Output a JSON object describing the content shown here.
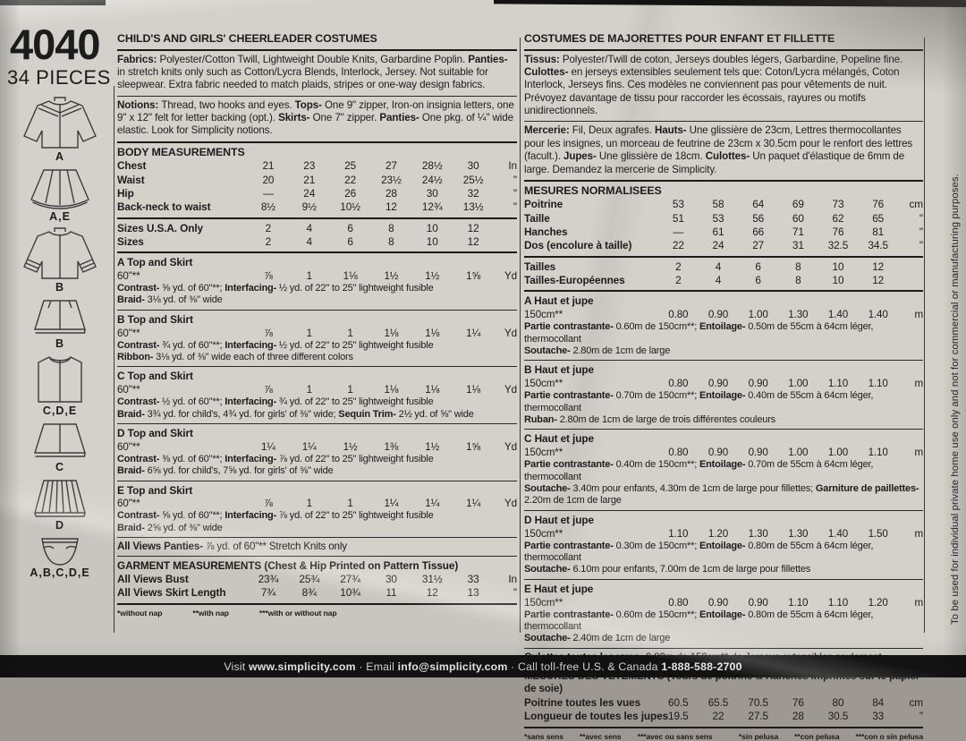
{
  "colors": {
    "paper": "#d4d1cb",
    "ink": "#1c1c1c",
    "footer_bg": "#141414",
    "footer_text": "#eceae7"
  },
  "sidebar": {
    "pattern_number": "4040",
    "pieces_count": "34 PIECES",
    "view_labels": [
      "A",
      "A,E",
      "B",
      "B",
      "C,D,E",
      "C",
      "D",
      "A,B,C,D,E"
    ]
  },
  "page": {
    "side_note": "To be used for individual private home use only and not for commercial or manufacturing purposes.",
    "footer": [
      "Visit ",
      "www.simplicity.com",
      " · Email ",
      "info@simplicity.com",
      " · Call toll-free U.S. & Canada ",
      "1-888-588-2700"
    ]
  },
  "english": {
    "title": "CHILD'S AND GIRLS' CHEERLEADER COSTUMES",
    "fabrics": [
      "Fabrics: ",
      "Polyester/Cotton Twill, Lightweight Double Knits, Garbardine Poplin. ",
      "Panties- ",
      "in stretch knits only such as Cotton/Lycra Blends, Interlock, Jersey. Not suitable for sleepwear. Extra fabric needed to match plaids, stripes or one-way design fabrics."
    ],
    "notions": [
      "Notions: ",
      "Thread, two hooks and eyes. ",
      "Tops- ",
      "One 9\" zipper, Iron-on insignia letters, one 9\" x 12\" felt for letter backing (opt.). ",
      "Skirts- ",
      "One 7\" zipper. ",
      "Panties- ",
      "One pkg. of ¼\" wide elastic. Look for Simplicity notions."
    ],
    "body_title": "BODY MEASUREMENTS",
    "body_rows": [
      {
        "label": "Chest",
        "cells": [
          "21",
          "23",
          "25",
          "27",
          "28½",
          "30",
          "In"
        ]
      },
      {
        "label": "Waist",
        "cells": [
          "20",
          "21",
          "22",
          "23½",
          "24½",
          "25½",
          "\""
        ]
      },
      {
        "label": "Hip",
        "cells": [
          "—",
          "24",
          "26",
          "28",
          "30",
          "32",
          "\""
        ]
      },
      {
        "label": "Back-neck to waist",
        "cells": [
          "8½",
          "9½",
          "10½",
          "12",
          "12¾",
          "13½",
          "\""
        ]
      }
    ],
    "size_rows": [
      {
        "label": "Sizes U.S.A. Only",
        "cells": [
          "2",
          "4",
          "6",
          "8",
          "10",
          "12",
          ""
        ]
      },
      {
        "label": "Sizes",
        "cells": [
          "2",
          "4",
          "6",
          "8",
          "10",
          "12",
          ""
        ]
      }
    ],
    "views": [
      {
        "title": "A Top and Skirt",
        "width": "60\"**",
        "values": [
          "⅞",
          "1",
          "1⅛",
          "1½",
          "1½",
          "1⅝",
          "Yd"
        ],
        "line2": [
          "Contrast- ",
          "⅝ yd. of 60\"**; ",
          "Interfacing- ",
          "½ yd. of 22\" to 25\" lightweight fusible"
        ],
        "line3": [
          "Braid- ",
          "3⅛ yd. of ⅜\" wide",
          "",
          ""
        ]
      },
      {
        "title": "B Top and Skirt",
        "width": "60\"**",
        "values": [
          "⅞",
          "1",
          "1",
          "1⅛",
          "1⅛",
          "1¼",
          "Yd"
        ],
        "line2": [
          "Contrast- ",
          "¾ yd. of 60\"**; ",
          "Interfacing- ",
          "½ yd. of 22\" to 25\" lightweight fusible"
        ],
        "line3": [
          "Ribbon- ",
          "3⅛ yd. of ⅜\" wide each of three different colors",
          "",
          ""
        ]
      },
      {
        "title": "C Top and Skirt",
        "width": "60\"**",
        "values": [
          "⅞",
          "1",
          "1",
          "1⅛",
          "1⅛",
          "1⅛",
          "Yd"
        ],
        "line2": [
          "Contrast- ",
          "½ yd. of 60\"**; ",
          "Interfacing- ",
          "¾ yd. of 22\" to 25\" lightweight fusible"
        ],
        "line3": [
          "Braid- ",
          "3¾ yd. for child's, 4¾ yd. for girls' of ⅜\" wide; ",
          "Sequin Trim- ",
          "2½ yd. of ⅝\" wide"
        ]
      },
      {
        "title": "D Top and Skirt",
        "width": "60\"**",
        "values": [
          "1¼",
          "1¼",
          "1½",
          "1⅜",
          "1½",
          "1⅝",
          "Yd"
        ],
        "line2": [
          "Contrast- ",
          "⅜ yd. of 60\"**; ",
          "Interfacing- ",
          "⅞ yd. of 22\" to 25\" lightweight fusible"
        ],
        "line3": [
          "Braid- ",
          "6⅝ yd. for child's, 7⅝ yd. for girls' of ⅜\" wide",
          "",
          ""
        ]
      },
      {
        "title": "E Top and Skirt",
        "width": "60\"**",
        "values": [
          "⅞",
          "1",
          "1",
          "1¼",
          "1¼",
          "1¼",
          "Yd"
        ],
        "line2": [
          "Contrast- ",
          "⅝ yd. of 60\"**; ",
          "Interfacing- ",
          "⅞ yd. of 22\" to 25\" lightweight fusible"
        ],
        "line3": [
          "Braid- ",
          "2⅝ yd. of ⅜\" wide",
          "",
          ""
        ]
      }
    ],
    "panties": [
      "All Views Panties- ",
      "⅞ yd. of 60\"** Stretch Knits only"
    ],
    "garment_title": "GARMENT MEASUREMENTS (Chest & Hip Printed on Pattern Tissue)",
    "garment_rows": [
      {
        "label": "All Views Bust",
        "cells": [
          "23¾",
          "25¾",
          "27¾",
          "30",
          "31½",
          "33",
          "In"
        ]
      },
      {
        "label": "All Views Skirt Length",
        "cells": [
          "7¾",
          "8¾",
          "10¾",
          "11",
          "12",
          "13",
          "\""
        ]
      }
    ],
    "footnotes": [
      "*without nap",
      "**with nap",
      "***with or without nap"
    ]
  },
  "french": {
    "title": "COSTUMES DE MAJORETTES POUR ENFANT ET FILLETTE",
    "fabrics": [
      "Tissus: ",
      "Polyester/Twill de coton, Jerseys doubles légers, Garbardine, Popeline fine. ",
      "Culottes- ",
      "en jerseys extensibles seulement tels que: Coton/Lycra mélangés, Coton Interlock, Jerseys fins. Ces modèles ne conviennent pas pour vêtements de nuit. Prévoyez davantage de tissu pour raccorder les écossais, rayures ou motifs unidirectionnels."
    ],
    "notions": [
      "Mercerie: ",
      "Fil, Deux agrafes. ",
      "Hauts- ",
      "Une glissière de 23cm, Lettres thermocollantes pour les insignes, un morceau de feutrine de 23cm x 30.5cm pour le renfort des lettres (facult.). ",
      "Jupes- ",
      "Une glissière de 18cm. ",
      "Culottes- ",
      "Un paquet d'élastique de 6mm de large. Demandez la mercerie de Simplicity."
    ],
    "body_title": "MESURES NORMALISEES",
    "body_rows": [
      {
        "label": "Poitrine",
        "cells": [
          "53",
          "58",
          "64",
          "69",
          "73",
          "76",
          "cm"
        ]
      },
      {
        "label": "Taille",
        "cells": [
          "51",
          "53",
          "56",
          "60",
          "62",
          "65",
          "\""
        ]
      },
      {
        "label": "Hanches",
        "cells": [
          "—",
          "61",
          "66",
          "71",
          "76",
          "81",
          "\""
        ]
      },
      {
        "label": "Dos (encolure à taille)",
        "cells": [
          "22",
          "24",
          "27",
          "31",
          "32.5",
          "34.5",
          "\""
        ]
      }
    ],
    "size_rows": [
      {
        "label": "Tailles",
        "cells": [
          "2",
          "4",
          "6",
          "8",
          "10",
          "12",
          ""
        ]
      },
      {
        "label": "Tailles-Européennes",
        "cells": [
          "2",
          "4",
          "6",
          "8",
          "10",
          "12",
          ""
        ]
      }
    ],
    "views": [
      {
        "title": "A Haut et jupe",
        "width": "150cm**",
        "values": [
          "0.80",
          "0.90",
          "1.00",
          "1.30",
          "1.40",
          "1.40",
          "m"
        ],
        "line2": [
          "Partie contrastante- ",
          "0.60m de 150cm**; ",
          "Entoilage- ",
          "0.50m de 55cm à 64cm léger, thermocollant"
        ],
        "line3": [
          "Soutache- ",
          "2.80m de 1cm de large",
          "",
          ""
        ]
      },
      {
        "title": "B Haut et jupe",
        "width": "150cm**",
        "values": [
          "0.80",
          "0.90",
          "0.90",
          "1.00",
          "1.10",
          "1.10",
          "m"
        ],
        "line2": [
          "Partie contrastante- ",
          "0.70m de 150cm**; ",
          "Entoilage- ",
          "0.40m de 55cm à 64cm léger, thermocollant"
        ],
        "line3": [
          "Ruban- ",
          "2.80m de 1cm de large de trois différentes couleurs",
          "",
          ""
        ]
      },
      {
        "title": "C Haut et jupe",
        "width": "150cm**",
        "values": [
          "0.80",
          "0.90",
          "0.90",
          "1.00",
          "1.00",
          "1.10",
          "m"
        ],
        "line2": [
          "Partie contrastante- ",
          "0.40m de 150cm**; ",
          "Entoilage- ",
          "0.70m de 55cm à 64cm léger, thermocollant"
        ],
        "line3": [
          "Soutache- ",
          "3.40m pour enfants, 4.30m de 1cm de large pour fillettes; ",
          "Garniture de paillettes- ",
          "2.20m de 1cm de large"
        ]
      },
      {
        "title": "D Haut et jupe",
        "width": "150cm**",
        "values": [
          "1.10",
          "1.20",
          "1.30",
          "1.30",
          "1.40",
          "1.50",
          "m"
        ],
        "line2": [
          "Partie contrastante- ",
          "0.30m de 150cm**; ",
          "Entoilage- ",
          "0.80m de 55cm à 64cm léger, thermocollant"
        ],
        "line3": [
          "Soutache- ",
          "6.10m pour enfants, 7.00m de 1cm de large pour fillettes",
          "",
          ""
        ]
      },
      {
        "title": "E Haut et jupe",
        "width": "150cm**",
        "values": [
          "0.80",
          "0.90",
          "0.90",
          "1.10",
          "1.10",
          "1.20",
          "m"
        ],
        "line2": [
          "Partie contrastante- ",
          "0.60m de 150cm**; ",
          "Entoilage- ",
          "0.80m de 55cm à 64cm léger, thermocollant"
        ],
        "line3": [
          "Soutache- ",
          "2.40m de 1cm de large",
          "",
          ""
        ]
      }
    ],
    "panties": [
      "Culottes toutes les vues- ",
      "0.80m de 150cm** de Jerseys extensibles seulement"
    ],
    "garment_title": "MESURES DES VETEMENTS (Tours de poitrine & Hanches imprimés sur le papier de soie)",
    "garment_rows": [
      {
        "label": "Poitrine toutes les vues",
        "cells": [
          "60.5",
          "65.5",
          "70.5",
          "76",
          "80",
          "84",
          "cm"
        ]
      },
      {
        "label": "Longueur de toutes les jupes",
        "cells": [
          "19.5",
          "22",
          "27.5",
          "28",
          "30.5",
          "33",
          "\""
        ]
      }
    ],
    "footnotes": [
      "*sans sens",
      "**avec sens",
      "***avec ou sans sens"
    ],
    "footnotes_es": [
      "*sin pelusa",
      "**con pelusa",
      "***con o sin pelusa"
    ]
  }
}
